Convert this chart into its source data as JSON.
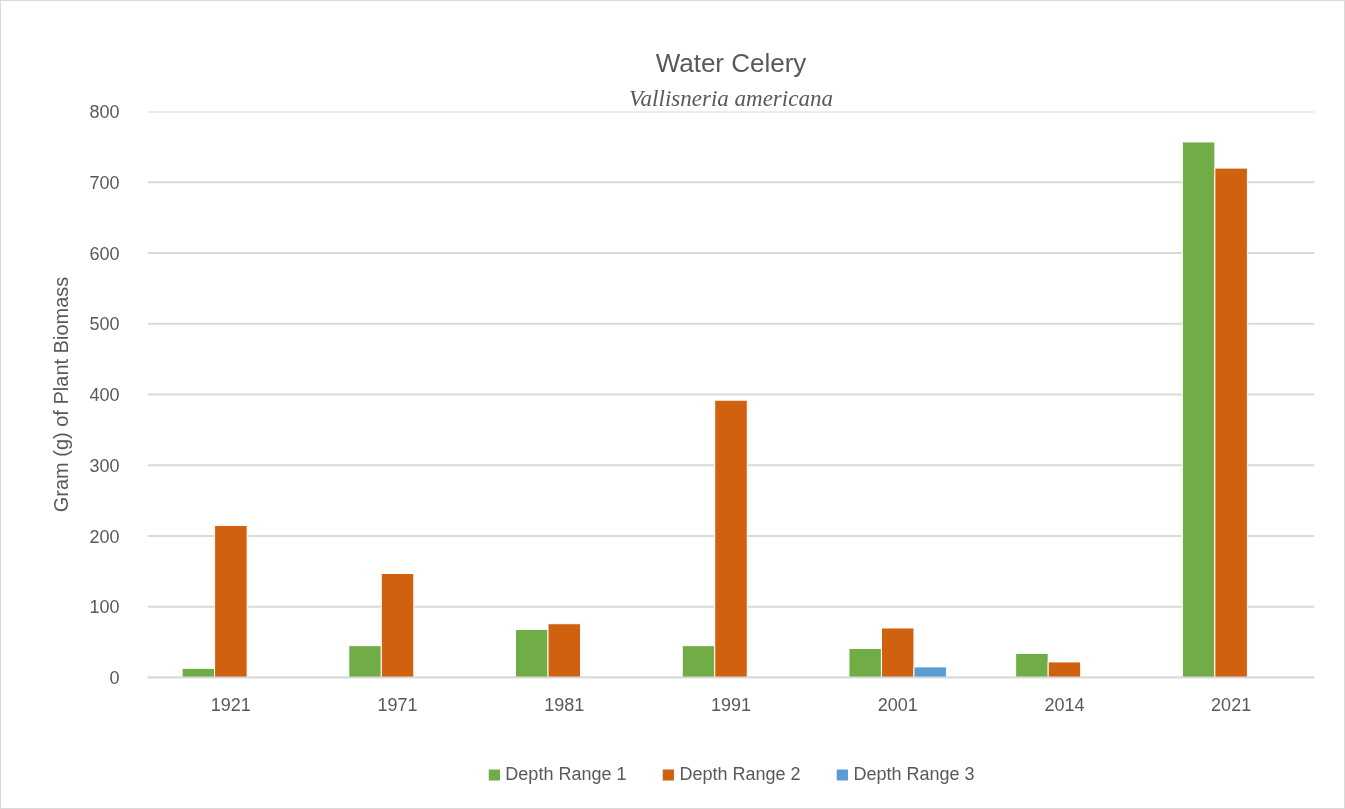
{
  "chart_data": {
    "type": "bar",
    "title": "Water Celery",
    "subtitle": "Vallisneria americana",
    "ylabel": "Gram (g) of Plant Biomass",
    "categories": [
      "1921",
      "1971",
      "1981",
      "1991",
      "2001",
      "2014",
      "2021"
    ],
    "series": [
      {
        "name": "Depth Range 1",
        "color": "#70ad47",
        "values": [
          13,
          45,
          68,
          45,
          41,
          34,
          757
        ]
      },
      {
        "name": "Depth Range 2",
        "color": "#d0610e",
        "values": [
          215,
          147,
          76,
          392,
          70,
          22,
          720
        ]
      },
      {
        "name": "Depth Range 3",
        "color": "#5b9bd5",
        "values": [
          null,
          null,
          null,
          null,
          15,
          null,
          null
        ]
      }
    ],
    "ylim": [
      0,
      800
    ],
    "yticks": [
      0,
      100,
      200,
      300,
      400,
      500,
      600,
      700,
      800
    ],
    "grid": "y",
    "legend": "bottom"
  }
}
